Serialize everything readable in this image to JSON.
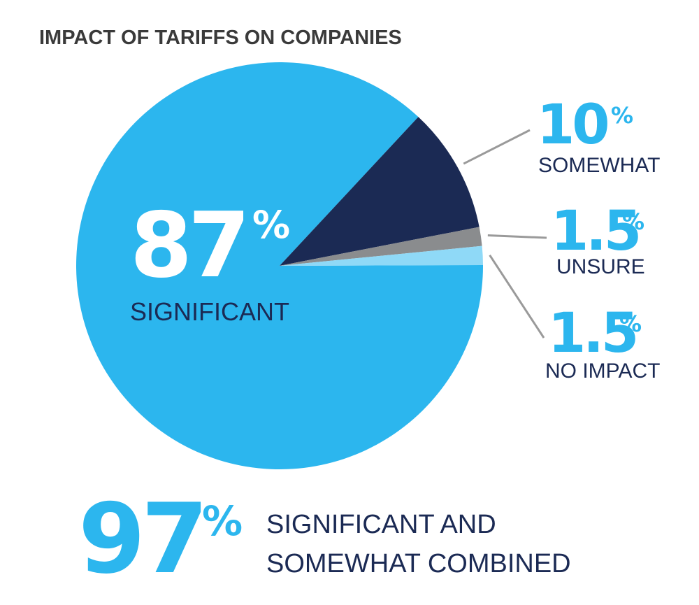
{
  "colors": {
    "significant": "#2cb6ee",
    "somewhat": "#1b2a54",
    "unsure": "#8a8c8e",
    "no_impact": "#8fd9f7",
    "text_dark": "#1b2a54",
    "title": "#3a3a3a",
    "leader": "#9a9a9a"
  },
  "chart_data": {
    "type": "pie",
    "title": "IMPACT OF TARIFFS ON COMPANIES",
    "slices": [
      {
        "label": "SIGNIFICANT",
        "value": 87,
        "display": "87"
      },
      {
        "label": "SOMEWHAT",
        "value": 10,
        "display": "10"
      },
      {
        "label": "UNSURE",
        "value": 1.5,
        "display": "1.5"
      },
      {
        "label": "NO IMPACT",
        "value": 1.5,
        "display": "1.5"
      }
    ],
    "percent_sign": "%",
    "summary": {
      "value": "97",
      "line1": "SIGNIFICANT AND",
      "line2": "SOMEWHAT COMBINED"
    }
  }
}
